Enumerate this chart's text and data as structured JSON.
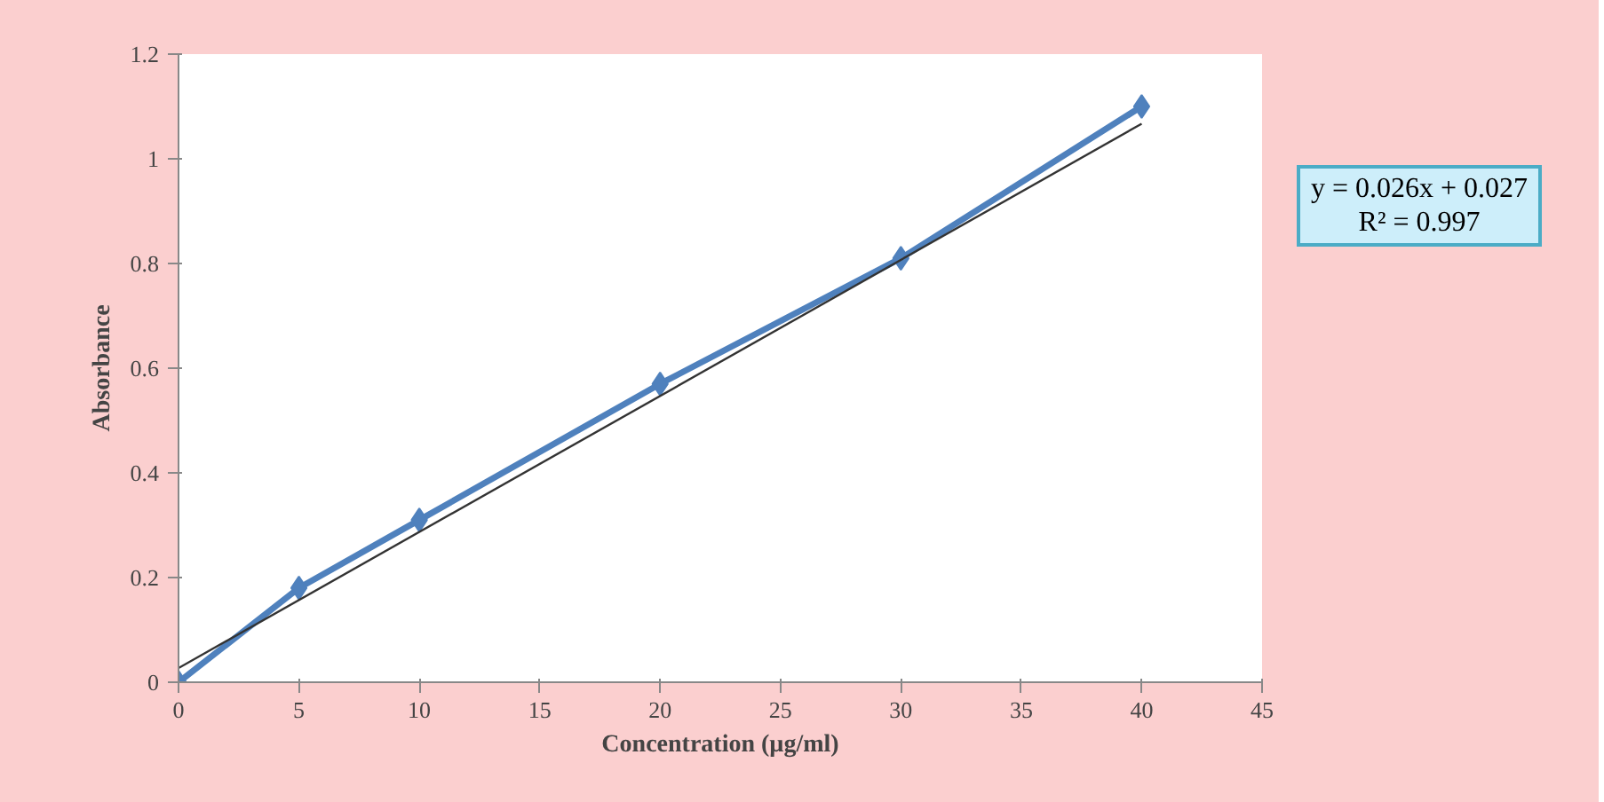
{
  "chart_data": {
    "type": "line",
    "xlabel": "Concentration (µg/ml)",
    "ylabel": "Absorbance",
    "x": [
      0,
      5,
      10,
      20,
      30,
      40
    ],
    "series": [
      {
        "color": "#4f81bd",
        "marker": "diamond",
        "values": [
          0,
          0.18,
          0.31,
          0.57,
          0.81,
          1.1
        ]
      },
      {
        "color": "#333333",
        "marker": "none",
        "x": [
          0,
          40
        ],
        "values": [
          0.027,
          1.067
        ]
      }
    ],
    "xlim": [
      0,
      45
    ],
    "xticks": [
      0,
      5,
      10,
      15,
      20,
      25,
      30,
      35,
      40,
      45
    ],
    "ylim": [
      0,
      1.2
    ],
    "yticks": [
      0,
      0.2,
      0.4,
      0.6,
      0.8,
      1,
      1.2
    ],
    "annotations": [
      "y = 0.026x + 0.027",
      "R² = 0.997"
    ],
    "grid": false
  }
}
